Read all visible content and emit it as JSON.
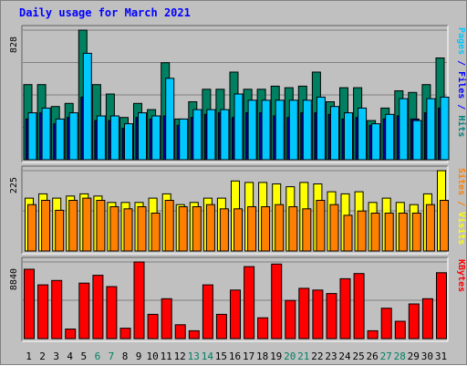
{
  "chart_data": [
    {
      "type": "bar",
      "title": "Daily usage for March 2021",
      "ylabel_parts": [
        {
          "text": "Pages",
          "color": "#00c8ff"
        },
        {
          "text": " / ",
          "color": "#0000ff"
        },
        {
          "text": "Files",
          "color": "#0000ff"
        },
        {
          "text": " / ",
          "color": "#0000ff"
        },
        {
          "text": "Hits",
          "color": "#008080"
        }
      ],
      "ymax_label": "828",
      "ylim": [
        0,
        828
      ],
      "categories": [
        "1",
        "2",
        "3",
        "4",
        "5",
        "6",
        "7",
        "8",
        "9",
        "10",
        "11",
        "12",
        "13",
        "14",
        "15",
        "16",
        "17",
        "18",
        "19",
        "20",
        "21",
        "22",
        "23",
        "24",
        "25",
        "26",
        "27",
        "28",
        "29",
        "30",
        "31"
      ],
      "series": [
        {
          "name": "Hits",
          "color": "#008060",
          "values": [
            480,
            480,
            340,
            360,
            828,
            480,
            420,
            270,
            360,
            320,
            620,
            260,
            370,
            450,
            450,
            560,
            450,
            450,
            470,
            460,
            470,
            560,
            370,
            460,
            460,
            250,
            330,
            440,
            430,
            480,
            650
          ]
        },
        {
          "name": "Files",
          "color": "#0000a0",
          "values": [
            260,
            300,
            230,
            270,
            400,
            250,
            250,
            200,
            270,
            260,
            280,
            220,
            270,
            290,
            300,
            270,
            300,
            300,
            280,
            270,
            300,
            300,
            290,
            260,
            270,
            220,
            260,
            280,
            260,
            300,
            330
          ]
        },
        {
          "name": "Pages",
          "color": "#00c8ff",
          "values": [
            300,
            330,
            260,
            300,
            680,
            280,
            280,
            230,
            300,
            280,
            520,
            260,
            320,
            320,
            320,
            420,
            380,
            380,
            380,
            380,
            380,
            400,
            340,
            300,
            330,
            230,
            290,
            390,
            250,
            390,
            400
          ]
        }
      ]
    },
    {
      "type": "bar",
      "ylabel_parts": [
        {
          "text": "Sites",
          "color": "#ff8000"
        },
        {
          "text": " / ",
          "color": "#ff8000"
        },
        {
          "text": "Visits",
          "color": "#ffff00"
        }
      ],
      "ymax_label": "225",
      "ylim": [
        0,
        225
      ],
      "series": [
        {
          "name": "Visits",
          "color": "#ffff00",
          "values": [
            148,
            160,
            148,
            154,
            160,
            154,
            136,
            136,
            136,
            148,
            160,
            130,
            136,
            148,
            148,
            196,
            192,
            192,
            188,
            180,
            192,
            188,
            166,
            160,
            166,
            136,
            148,
            136,
            130,
            160,
            225
          ]
        },
        {
          "name": "Sites",
          "color": "#ff8000",
          "values": [
            130,
            142,
            114,
            142,
            148,
            142,
            124,
            118,
            124,
            106,
            142,
            124,
            124,
            130,
            118,
            118,
            124,
            124,
            130,
            124,
            118,
            142,
            130,
            100,
            112,
            106,
            106,
            106,
            106,
            130,
            142
          ]
        }
      ]
    },
    {
      "type": "bar",
      "ylabel_parts": [
        {
          "text": "KBytes",
          "color": "#ff0000"
        }
      ],
      "ymax_label": "8840",
      "ylim": [
        0,
        8840
      ],
      "series": [
        {
          "name": "KBytes",
          "color": "#ff0000",
          "values": [
            8000,
            6200,
            6700,
            1100,
            6400,
            7300,
            6000,
            1200,
            8840,
            2800,
            4600,
            1600,
            900,
            6200,
            2800,
            5600,
            8300,
            2400,
            8600,
            4400,
            5800,
            5600,
            5200,
            6900,
            7500,
            900,
            3500,
            2000,
            4000,
            4600,
            7600
          ]
        }
      ]
    }
  ],
  "x_label_colors": [
    "#000000",
    "#000000",
    "#000000",
    "#000000",
    "#000000",
    "#008060",
    "#008060",
    "#000000",
    "#000000",
    "#000000",
    "#000000",
    "#000000",
    "#008060",
    "#008060",
    "#000000",
    "#000000",
    "#000000",
    "#000000",
    "#000000",
    "#008060",
    "#008060",
    "#000000",
    "#000000",
    "#000000",
    "#000000",
    "#000000",
    "#008060",
    "#008060",
    "#000000",
    "#000000",
    "#000000"
  ]
}
